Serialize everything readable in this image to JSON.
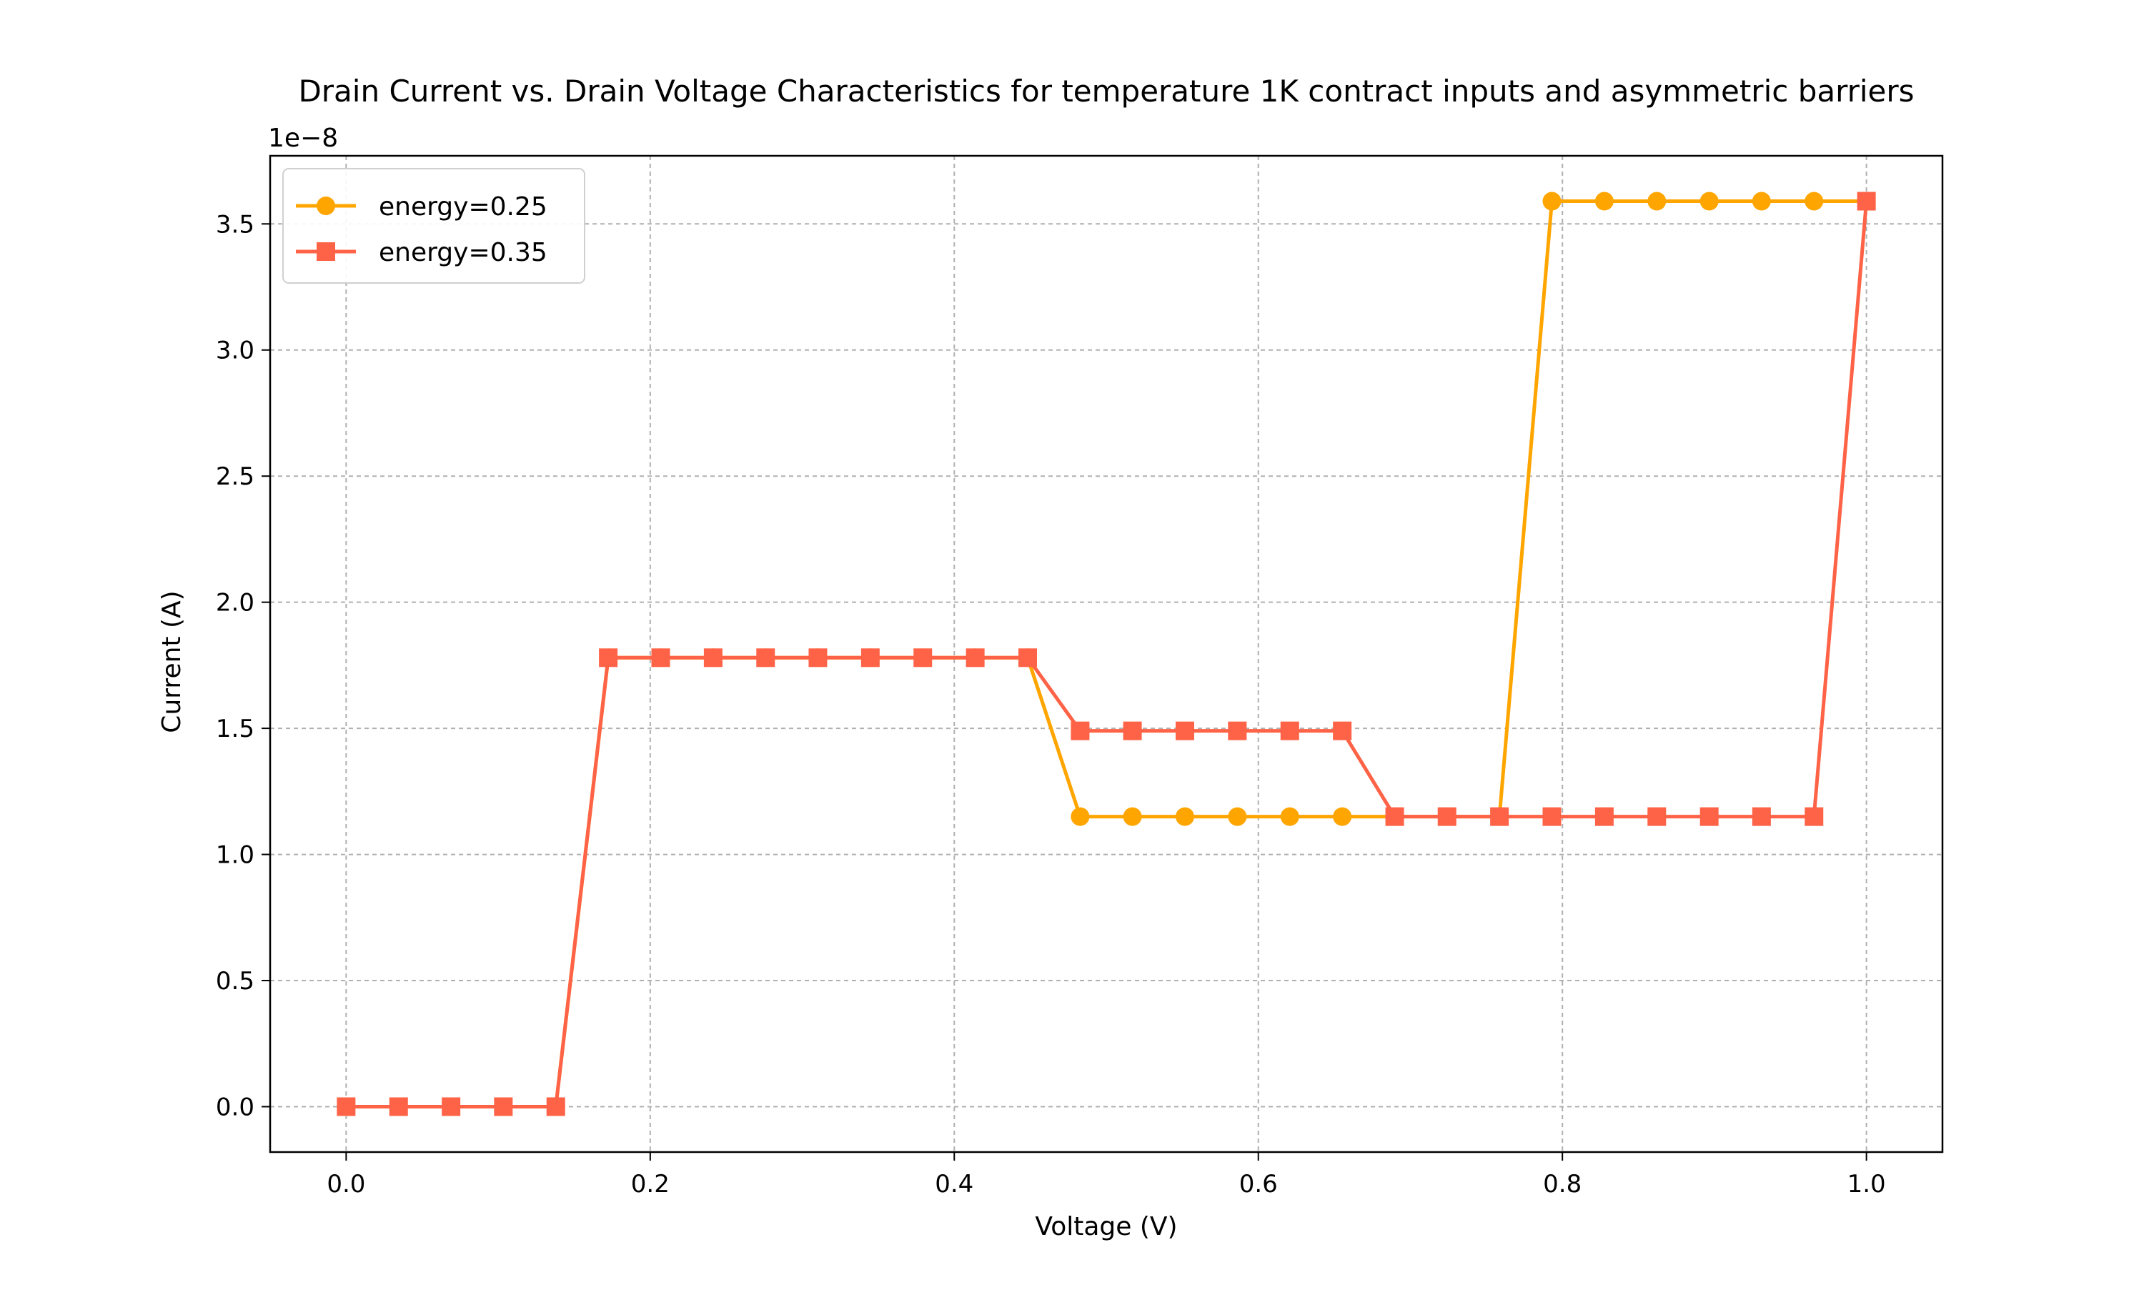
{
  "chart_data": {
    "type": "line",
    "title": "Drain Current vs. Drain Voltage Characteristics for temperature 1K contract inputs and asymmetric barriers",
    "xlabel": "Voltage (V)",
    "ylabel": "Current (A)",
    "y_offset_label": "1e−8",
    "y_scale": 1e-08,
    "xlim": [
      -0.05,
      1.05
    ],
    "ylim": [
      -0.18,
      3.77
    ],
    "x_ticks": [
      0.0,
      0.2,
      0.4,
      0.6,
      0.8,
      1.0
    ],
    "x_tick_labels": [
      "0.0",
      "0.2",
      "0.4",
      "0.6",
      "0.8",
      "1.0"
    ],
    "y_ticks": [
      0.0,
      0.5,
      1.0,
      1.5,
      2.0,
      2.5,
      3.0,
      3.5
    ],
    "y_tick_labels": [
      "0.0",
      "0.5",
      "1.0",
      "1.5",
      "2.0",
      "2.5",
      "3.0",
      "3.5"
    ],
    "grid": true,
    "legend_position": "top-left",
    "x": [
      0.0,
      0.0345,
      0.069,
      0.1034,
      0.1379,
      0.1724,
      0.2069,
      0.2414,
      0.2759,
      0.3103,
      0.3448,
      0.3793,
      0.4138,
      0.4483,
      0.4828,
      0.5172,
      0.5517,
      0.5862,
      0.6207,
      0.6552,
      0.6897,
      0.7241,
      0.7586,
      0.7931,
      0.8276,
      0.8621,
      0.8966,
      0.931,
      0.9655,
      1.0
    ],
    "series": [
      {
        "name": "energy=0.25",
        "color": "#ffa500",
        "marker": "circle",
        "values": [
          0,
          0,
          0,
          0,
          0,
          1.78,
          1.78,
          1.78,
          1.78,
          1.78,
          1.78,
          1.78,
          1.78,
          1.78,
          1.15,
          1.15,
          1.15,
          1.15,
          1.15,
          1.15,
          1.15,
          1.15,
          1.15,
          3.59,
          3.59,
          3.59,
          3.59,
          3.59,
          3.59,
          3.59
        ]
      },
      {
        "name": "energy=0.35",
        "color": "#ff6347",
        "marker": "square",
        "values": [
          0,
          0,
          0,
          0,
          0,
          1.78,
          1.78,
          1.78,
          1.78,
          1.78,
          1.78,
          1.78,
          1.78,
          1.78,
          1.49,
          1.49,
          1.49,
          1.49,
          1.49,
          1.49,
          1.15,
          1.15,
          1.15,
          1.15,
          1.15,
          1.15,
          1.15,
          1.15,
          1.15,
          3.59
        ]
      }
    ]
  }
}
